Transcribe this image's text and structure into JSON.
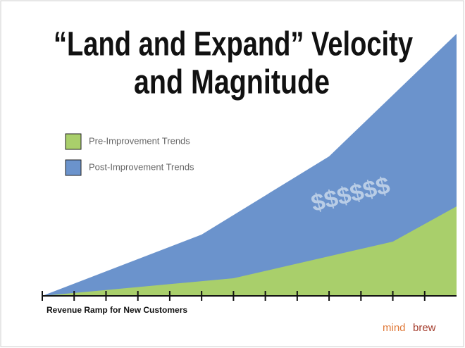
{
  "chart_data": {
    "type": "area",
    "title": [
      "“Land and Expand” Velocity",
      "and Magnitude"
    ],
    "x_label": "Revenue Ramp for New Customers",
    "annotation": "$$$$$$",
    "xlim": [
      0,
      13
    ],
    "xticks": [
      0,
      1,
      2,
      3,
      4,
      5,
      6,
      7,
      8,
      9,
      10,
      11,
      12
    ],
    "series": [
      {
        "name": "Post-Improvement Trends",
        "color": "#6b93cc",
        "x": [
          0,
          5,
          9,
          13
        ],
        "values": [
          0,
          87,
          198,
          372
        ]
      },
      {
        "name": "Pre-Improvement Trends",
        "color": "#a9cf6b",
        "x": [
          0,
          6,
          11,
          13
        ],
        "values": [
          0,
          25,
          77,
          127
        ]
      }
    ],
    "legend_order": [
      1,
      0
    ],
    "legend": "upper left"
  },
  "logo": [
    "mind",
    "brew"
  ]
}
